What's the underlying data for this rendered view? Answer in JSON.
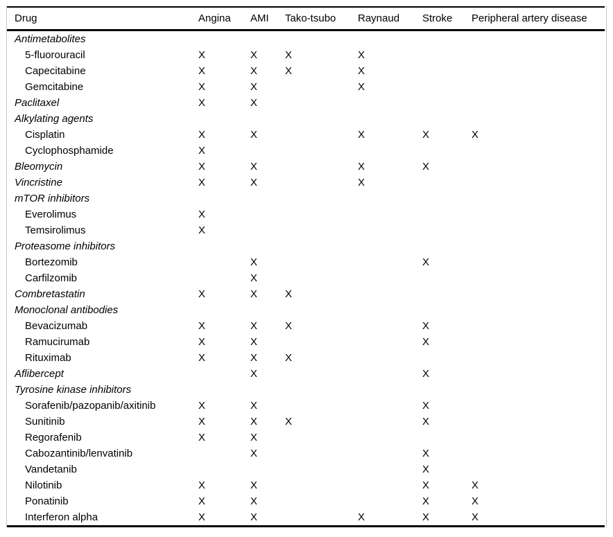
{
  "table": {
    "drug_header": "Drug",
    "columns": [
      "Angina",
      "AMI",
      "Tako-tsubo",
      "Raynaud",
      "Stroke",
      "Peripheral artery disease"
    ],
    "mark_glyph": "X",
    "rows": [
      {
        "label": "Antimetabolites",
        "group": true,
        "italic": true,
        "indent": 0,
        "marks": [
          0,
          0,
          0,
          0,
          0,
          0
        ]
      },
      {
        "label": "5-fluorouracil",
        "group": false,
        "italic": false,
        "indent": 1,
        "marks": [
          1,
          1,
          1,
          1,
          0,
          0
        ]
      },
      {
        "label": "Capecitabine",
        "group": false,
        "italic": false,
        "indent": 1,
        "marks": [
          1,
          1,
          1,
          1,
          0,
          0
        ]
      },
      {
        "label": "Gemcitabine",
        "group": false,
        "italic": false,
        "indent": 1,
        "marks": [
          1,
          1,
          0,
          1,
          0,
          0
        ]
      },
      {
        "label": "Paclitaxel",
        "group": false,
        "italic": true,
        "indent": 0,
        "marks": [
          1,
          1,
          0,
          0,
          0,
          0
        ]
      },
      {
        "label": "Alkylating agents",
        "group": true,
        "italic": true,
        "indent": 0,
        "marks": [
          0,
          0,
          0,
          0,
          0,
          0
        ]
      },
      {
        "label": "Cisplatin",
        "group": false,
        "italic": false,
        "indent": 1,
        "marks": [
          1,
          1,
          0,
          1,
          1,
          1
        ]
      },
      {
        "label": "Cyclophosphamide",
        "group": false,
        "italic": false,
        "indent": 1,
        "marks": [
          1,
          0,
          0,
          0,
          0,
          0
        ]
      },
      {
        "label": "Bleomycin",
        "group": false,
        "italic": true,
        "indent": 0,
        "marks": [
          1,
          1,
          0,
          1,
          1,
          0
        ]
      },
      {
        "label": "Vincristine",
        "group": false,
        "italic": true,
        "indent": 0,
        "marks": [
          1,
          1,
          0,
          1,
          0,
          0
        ]
      },
      {
        "label": "mTOR inhibitors",
        "group": true,
        "italic": true,
        "indent": 0,
        "marks": [
          0,
          0,
          0,
          0,
          0,
          0
        ]
      },
      {
        "label": "Everolimus",
        "group": false,
        "italic": false,
        "indent": 1,
        "marks": [
          1,
          0,
          0,
          0,
          0,
          0
        ]
      },
      {
        "label": "Temsirolimus",
        "group": false,
        "italic": false,
        "indent": 1,
        "marks": [
          1,
          0,
          0,
          0,
          0,
          0
        ]
      },
      {
        "label": "Proteasome inhibitors",
        "group": true,
        "italic": true,
        "indent": 0,
        "marks": [
          0,
          0,
          0,
          0,
          0,
          0
        ]
      },
      {
        "label": "Bortezomib",
        "group": false,
        "italic": false,
        "indent": 1,
        "marks": [
          0,
          1,
          0,
          0,
          1,
          0
        ]
      },
      {
        "label": "Carfilzomib",
        "group": false,
        "italic": false,
        "indent": 1,
        "marks": [
          0,
          1,
          0,
          0,
          0,
          0
        ]
      },
      {
        "label": "Combretastatin",
        "group": false,
        "italic": true,
        "indent": 0,
        "marks": [
          1,
          1,
          1,
          0,
          0,
          0
        ]
      },
      {
        "label": "Monoclonal antibodies",
        "group": true,
        "italic": true,
        "indent": 0,
        "marks": [
          0,
          0,
          0,
          0,
          0,
          0
        ]
      },
      {
        "label": "Bevacizumab",
        "group": false,
        "italic": false,
        "indent": 1,
        "marks": [
          1,
          1,
          1,
          0,
          1,
          0
        ]
      },
      {
        "label": "Ramucirumab",
        "group": false,
        "italic": false,
        "indent": 1,
        "marks": [
          1,
          1,
          0,
          0,
          1,
          0
        ]
      },
      {
        "label": "Rituximab",
        "group": false,
        "italic": false,
        "indent": 1,
        "marks": [
          1,
          1,
          1,
          0,
          0,
          0
        ]
      },
      {
        "label": "Aflibercept",
        "group": false,
        "italic": true,
        "indent": 0,
        "marks": [
          0,
          1,
          0,
          0,
          1,
          0
        ]
      },
      {
        "label": "Tyrosine kinase inhibitors",
        "group": true,
        "italic": true,
        "indent": 0,
        "marks": [
          0,
          0,
          0,
          0,
          0,
          0
        ]
      },
      {
        "label": "Sorafenib/pazopanib/axitinib",
        "group": false,
        "italic": false,
        "indent": 1,
        "marks": [
          1,
          1,
          0,
          0,
          1,
          0
        ]
      },
      {
        "label": "Sunitinib",
        "group": false,
        "italic": false,
        "indent": 1,
        "marks": [
          1,
          1,
          1,
          0,
          1,
          0
        ]
      },
      {
        "label": "Regorafenib",
        "group": false,
        "italic": false,
        "indent": 1,
        "marks": [
          1,
          1,
          0,
          0,
          0,
          0
        ]
      },
      {
        "label": "Cabozantinib/lenvatinib",
        "group": false,
        "italic": false,
        "indent": 1,
        "marks": [
          0,
          1,
          0,
          0,
          1,
          0
        ]
      },
      {
        "label": "Vandetanib",
        "group": false,
        "italic": false,
        "indent": 1,
        "marks": [
          0,
          0,
          0,
          0,
          1,
          0
        ]
      },
      {
        "label": "Nilotinib",
        "group": false,
        "italic": false,
        "indent": 1,
        "marks": [
          1,
          1,
          0,
          0,
          1,
          1
        ]
      },
      {
        "label": "Ponatinib",
        "group": false,
        "italic": false,
        "indent": 1,
        "marks": [
          1,
          1,
          0,
          0,
          1,
          1
        ]
      },
      {
        "label": "Interferon alpha",
        "group": false,
        "italic": false,
        "indent": 1,
        "marks": [
          1,
          1,
          0,
          1,
          1,
          1
        ]
      }
    ]
  },
  "colors": {
    "rule": "#000000",
    "frame_border": "#c9c9c9",
    "text": "#000000",
    "background": "#ffffff"
  }
}
